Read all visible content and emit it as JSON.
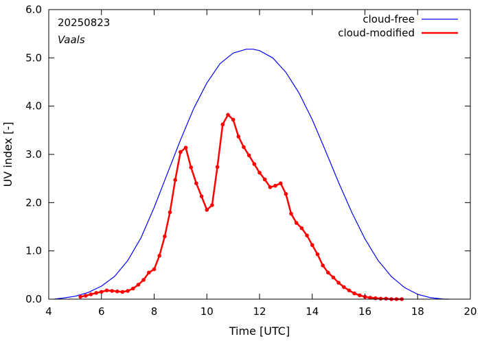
{
  "chart_data": {
    "type": "line",
    "title": "",
    "annotations": [
      "20250823",
      "Vaals"
    ],
    "xlabel": "Time  [UTC]",
    "ylabel": "UV index  [-]",
    "xlim": [
      4,
      20
    ],
    "ylim": [
      0,
      6
    ],
    "xticks": [
      4,
      6,
      8,
      10,
      12,
      14,
      16,
      18,
      20
    ],
    "yticks": [
      0,
      1,
      2,
      3,
      4,
      5,
      6
    ],
    "x_tick_labels": [
      "4",
      "6",
      "8",
      "10",
      "12",
      "14",
      "16",
      "18",
      "20"
    ],
    "y_tick_labels": [
      "0.0",
      "1.0",
      "2.0",
      "3.0",
      "4.0",
      "5.0",
      "6.0"
    ],
    "legend_position": "top-right",
    "grid": false,
    "series": [
      {
        "name": "cloud-free",
        "color": "#0000ff",
        "markers": false,
        "x": [
          4.2,
          4.5,
          5.0,
          5.5,
          6.0,
          6.5,
          7.0,
          7.5,
          8.0,
          8.5,
          9.0,
          9.5,
          10.0,
          10.5,
          11.0,
          11.5,
          11.75,
          12.0,
          12.5,
          13.0,
          13.5,
          14.0,
          14.5,
          15.0,
          15.5,
          16.0,
          16.5,
          17.0,
          17.5,
          18.0,
          18.5,
          19.0,
          19.2
        ],
        "y": [
          0.0,
          0.02,
          0.06,
          0.14,
          0.27,
          0.47,
          0.8,
          1.27,
          1.9,
          2.6,
          3.3,
          3.95,
          4.48,
          4.88,
          5.1,
          5.18,
          5.18,
          5.15,
          5.0,
          4.7,
          4.27,
          3.72,
          3.08,
          2.42,
          1.8,
          1.25,
          0.8,
          0.47,
          0.24,
          0.1,
          0.03,
          0.0,
          0.0
        ]
      },
      {
        "name": "cloud-modified",
        "color": "#ff0000",
        "markers": true,
        "x": [
          5.2,
          5.4,
          5.6,
          5.8,
          6.0,
          6.2,
          6.4,
          6.6,
          6.8,
          7.0,
          7.2,
          7.4,
          7.6,
          7.8,
          8.0,
          8.2,
          8.4,
          8.6,
          8.8,
          9.0,
          9.2,
          9.4,
          9.6,
          9.8,
          10.0,
          10.2,
          10.4,
          10.6,
          10.8,
          11.0,
          11.2,
          11.4,
          11.6,
          11.8,
          12.0,
          12.2,
          12.4,
          12.6,
          12.8,
          13.0,
          13.2,
          13.4,
          13.6,
          13.8,
          14.0,
          14.2,
          14.4,
          14.6,
          14.8,
          15.0,
          15.2,
          15.4,
          15.6,
          15.8,
          16.0,
          16.2,
          16.4,
          16.6,
          16.8,
          17.0,
          17.2,
          17.4
        ],
        "y": [
          0.05,
          0.07,
          0.1,
          0.13,
          0.15,
          0.18,
          0.17,
          0.16,
          0.15,
          0.17,
          0.22,
          0.3,
          0.4,
          0.55,
          0.62,
          0.9,
          1.3,
          1.8,
          2.47,
          3.05,
          3.14,
          2.73,
          2.4,
          2.13,
          1.85,
          1.95,
          2.74,
          3.62,
          3.82,
          3.72,
          3.37,
          3.15,
          2.98,
          2.8,
          2.62,
          2.48,
          2.32,
          2.35,
          2.4,
          2.18,
          1.77,
          1.58,
          1.47,
          1.32,
          1.12,
          0.93,
          0.7,
          0.55,
          0.45,
          0.34,
          0.25,
          0.18,
          0.12,
          0.08,
          0.05,
          0.03,
          0.02,
          0.01,
          0.01,
          0.0,
          0.0,
          0.0
        ]
      }
    ]
  }
}
